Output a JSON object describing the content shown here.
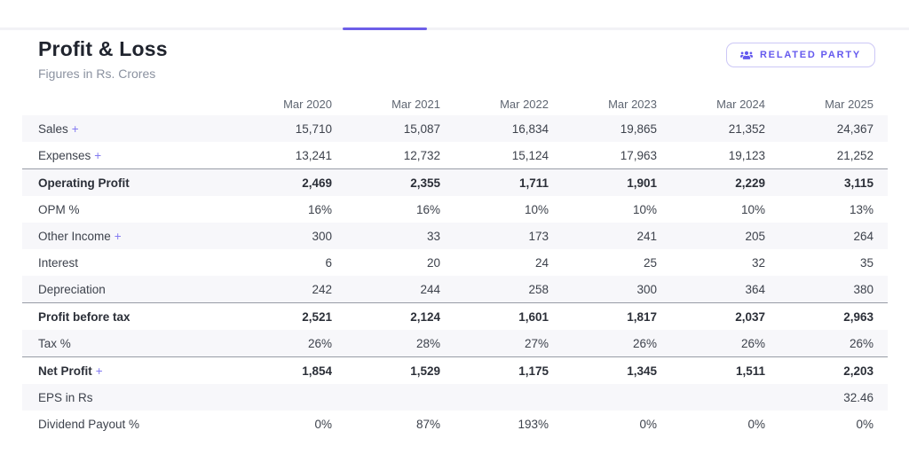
{
  "page": {
    "title": "Profit & Loss",
    "subtitle": "Figures in Rs. Crores"
  },
  "toolbar": {
    "related_party_label": "RELATED PARTY"
  },
  "icons": {
    "related_party_icon": "users-group-icon"
  },
  "colors": {
    "accent": "#6d5ee8",
    "button_text": "#6459ee",
    "button_border": "#ccc7f6",
    "row_stripe": "#f7f7fa",
    "strong_border": "#989ca6",
    "text_primary": "#20242e",
    "text_muted": "#8b92a0"
  },
  "table": {
    "plus_symbol": "+",
    "columns": [
      "Mar 2020",
      "Mar 2021",
      "Mar 2022",
      "Mar 2023",
      "Mar 2024",
      "Mar 2025"
    ],
    "rows": [
      {
        "label": "Sales",
        "expandable": true,
        "strong": false,
        "values": [
          "15,710",
          "15,087",
          "16,834",
          "19,865",
          "21,352",
          "24,367"
        ]
      },
      {
        "label": "Expenses",
        "expandable": true,
        "strong": false,
        "values": [
          "13,241",
          "12,732",
          "15,124",
          "17,963",
          "19,123",
          "21,252"
        ]
      },
      {
        "label": "Operating Profit",
        "expandable": false,
        "strong": true,
        "values": [
          "2,469",
          "2,355",
          "1,711",
          "1,901",
          "2,229",
          "3,115"
        ]
      },
      {
        "label": "OPM %",
        "expandable": false,
        "strong": false,
        "values": [
          "16%",
          "16%",
          "10%",
          "10%",
          "10%",
          "13%"
        ]
      },
      {
        "label": "Other Income",
        "expandable": true,
        "strong": false,
        "values": [
          "300",
          "33",
          "173",
          "241",
          "205",
          "264"
        ]
      },
      {
        "label": "Interest",
        "expandable": false,
        "strong": false,
        "values": [
          "6",
          "20",
          "24",
          "25",
          "32",
          "35"
        ]
      },
      {
        "label": "Depreciation",
        "expandable": false,
        "strong": false,
        "values": [
          "242",
          "244",
          "258",
          "300",
          "364",
          "380"
        ]
      },
      {
        "label": "Profit before tax",
        "expandable": false,
        "strong": true,
        "values": [
          "2,521",
          "2,124",
          "1,601",
          "1,817",
          "2,037",
          "2,963"
        ]
      },
      {
        "label": "Tax %",
        "expandable": false,
        "strong": false,
        "values": [
          "26%",
          "28%",
          "27%",
          "26%",
          "26%",
          "26%"
        ]
      },
      {
        "label": "Net Profit",
        "expandable": true,
        "strong": true,
        "values": [
          "1,854",
          "1,529",
          "1,175",
          "1,345",
          "1,511",
          "2,203"
        ]
      },
      {
        "label": "EPS in Rs",
        "expandable": false,
        "strong": false,
        "values": [
          "",
          "",
          "",
          "",
          "",
          "32.46"
        ]
      },
      {
        "label": "Dividend Payout %",
        "expandable": false,
        "strong": false,
        "values": [
          "0%",
          "87%",
          "193%",
          "0%",
          "0%",
          "0%"
        ]
      }
    ]
  }
}
